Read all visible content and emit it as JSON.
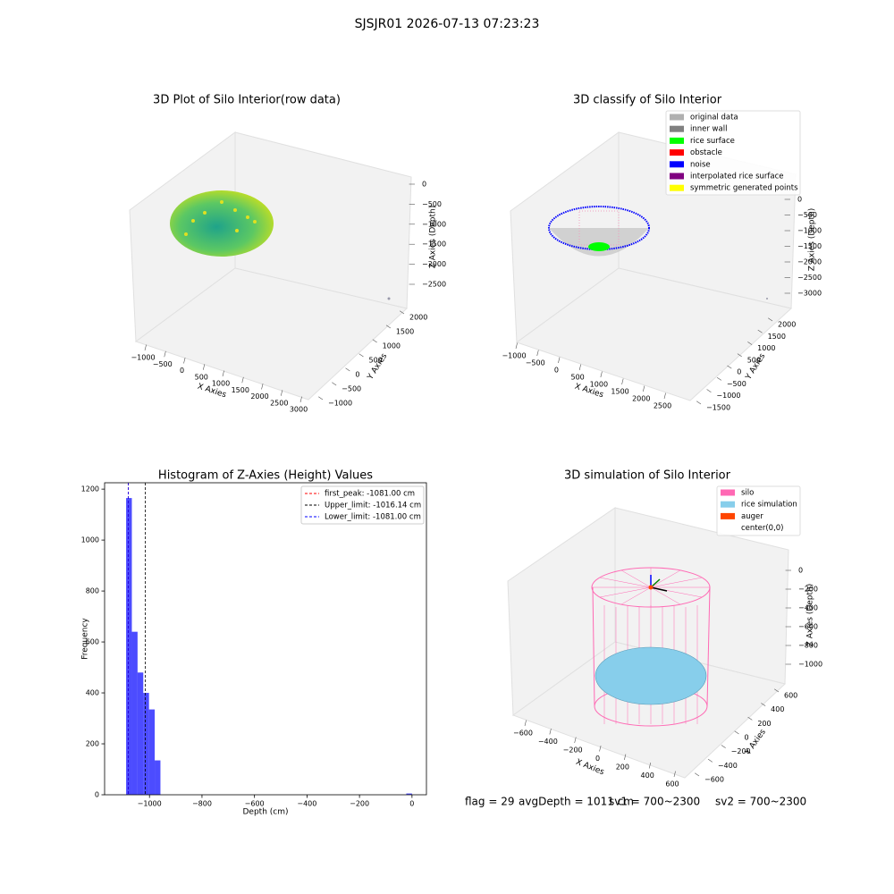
{
  "title": "SJSJR01 2026-07-13 07:23:23",
  "status": [
    "flag = 29",
    "avgDepth = 1011 cm",
    "sv1 = 700~2300",
    "sv2 = 700~2300"
  ],
  "chart_data": [
    {
      "type": "scatter3d",
      "title": "3D Plot of Silo Interior(row data)",
      "xlabel": "X Axies",
      "ylabel": "Y Axies",
      "zlabel": "Z Axies (Depth)",
      "xticks": [
        {
          "value": -1000,
          "label": "−1000"
        },
        {
          "value": -500,
          "label": "−500"
        },
        0,
        500,
        1000,
        1500,
        2000,
        2500,
        3000
      ],
      "yticks": [
        {
          "value": -1000,
          "label": "−1000"
        },
        {
          "value": -500,
          "label": "−500"
        },
        0,
        500,
        1000,
        1500,
        2000
      ],
      "zticks": [
        0,
        {
          "value": -500,
          "label": "−500"
        },
        {
          "value": -1000,
          "label": "−1000"
        },
        {
          "value": -1500,
          "label": "−1500"
        },
        {
          "value": -2000,
          "label": "−2000"
        },
        {
          "value": -2500,
          "label": "−2500"
        }
      ]
    },
    {
      "type": "scatter3d",
      "title": "3D classify of Silo Interior",
      "xlabel": "X Axies",
      "ylabel": "Y Axies",
      "zlabel": "Z Axies (Depth)",
      "xticks": [
        {
          "value": -1000,
          "label": "−1000"
        },
        {
          "value": -500,
          "label": "−500"
        },
        0,
        500,
        1000,
        1500,
        2000,
        2500
      ],
      "yticks": [
        {
          "value": -1500,
          "label": "−1500"
        },
        {
          "value": -1000,
          "label": "−1000"
        },
        {
          "value": -500,
          "label": "−500"
        },
        0,
        500,
        1000,
        1500,
        2000
      ],
      "zticks": [
        0,
        {
          "value": -500,
          "label": "−500"
        },
        {
          "value": -1000,
          "label": "−1000"
        },
        {
          "value": -1500,
          "label": "−1500"
        },
        {
          "value": -2000,
          "label": "−2000"
        },
        {
          "value": -2500,
          "label": "−2500"
        },
        {
          "value": -3000,
          "label": "−3000"
        }
      ],
      "series": [
        {
          "name": "original data",
          "color": "#b0b0b0"
        },
        {
          "name": "inner wall",
          "color": "#808080"
        },
        {
          "name": "rice surface",
          "color": "#00ff00"
        },
        {
          "name": "obstacle",
          "color": "#ff0000"
        },
        {
          "name": "noise",
          "color": "#0000ff"
        },
        {
          "name": "interpolated rice surface",
          "color": "#800080"
        },
        {
          "name": "symmetric generated points",
          "color": "#ffff00"
        }
      ]
    },
    {
      "type": "histogram",
      "title": "Histogram of Z-Axies (Height) Values",
      "xlabel": "Depth (cm)",
      "ylabel": "Frequency",
      "color": "#0000ff",
      "bins": [
        -1089,
        -1067.22,
        -1045.44,
        -1023.66,
        -1001.88,
        -980.1,
        -958.32,
        -936.54,
        -914.76,
        -892.98,
        -871.2,
        -849.42,
        -827.64,
        -805.86,
        -784.08,
        -762.3,
        -740.52,
        -718.74,
        -696.96,
        -675.18,
        -653.4,
        -631.62,
        -609.84,
        -588.06,
        -566.28,
        -544.5,
        -522.72,
        -500.94,
        -479.16,
        -457.38,
        -435.6,
        -413.82,
        -392.04,
        -370.26,
        -348.48,
        -326.7,
        -304.92,
        -283.14,
        -261.36,
        -239.58,
        -217.8,
        -196.02,
        -174.24,
        -152.46,
        -130.68,
        -108.9,
        -87.12,
        -65.34,
        -43.56,
        -21.78,
        0
      ],
      "values": [
        1165,
        640,
        480,
        400,
        335,
        135,
        0,
        0,
        0,
        0,
        0,
        0,
        0,
        0,
        0,
        0,
        0,
        0,
        0,
        0,
        0,
        0,
        0,
        0,
        0,
        0,
        0,
        0,
        0,
        0,
        0,
        0,
        0,
        0,
        0,
        0,
        0,
        0,
        0,
        0,
        0,
        0,
        0,
        0,
        0,
        0,
        0,
        0,
        0,
        5
      ],
      "vlines": [
        {
          "label": "first_peak: -1081.00 cm",
          "value": -1081,
          "color": "#ff0000"
        },
        {
          "label": "Upper_limit: -1016.14 cm",
          "value": -1016.14,
          "color": "#000000"
        },
        {
          "label": "Lower_limit: -1081.00 cm",
          "value": -1081,
          "color": "#0000ff"
        }
      ],
      "xlim": [
        -1171,
        55
      ],
      "ylim": [
        0,
        1225
      ],
      "xticks": [
        {
          "value": -1000,
          "label": "−1000"
        },
        {
          "value": -800,
          "label": "−800"
        },
        {
          "value": -600,
          "label": "−600"
        },
        {
          "value": -400,
          "label": "−400"
        },
        {
          "value": -200,
          "label": "−200"
        },
        0
      ],
      "yticks": [
        0,
        200,
        400,
        600,
        800,
        1000,
        1200
      ],
      "legend": "upper right"
    },
    {
      "type": "scatter3d",
      "title": "3D simulation of Silo Interior",
      "xlabel": "X Axies",
      "ylabel": "Y Axies",
      "zlabel": "Z Axies (Depth)",
      "xticks": [
        {
          "value": -600,
          "label": "−600"
        },
        {
          "value": -400,
          "label": "−400"
        },
        {
          "value": -200,
          "label": "−200"
        },
        0,
        200,
        400,
        600
      ],
      "yticks": [
        {
          "value": -600,
          "label": "−600"
        },
        {
          "value": -400,
          "label": "−400"
        },
        {
          "value": -200,
          "label": "−200"
        },
        0,
        200,
        400,
        600
      ],
      "zticks": [
        0,
        {
          "value": -200,
          "label": "−200"
        },
        {
          "value": -400,
          "label": "−400"
        },
        {
          "value": -600,
          "label": "−600"
        },
        {
          "value": -800,
          "label": "−800"
        },
        {
          "value": -1000,
          "label": "−1000"
        }
      ],
      "series": [
        {
          "name": "silo",
          "color": "#ff69b4"
        },
        {
          "name": "rice simulation",
          "color": "#87ceeb"
        },
        {
          "name": "auger",
          "color": "#ff4500"
        },
        {
          "name": "center(0,0)",
          "color": "#ffffff"
        }
      ]
    }
  ]
}
